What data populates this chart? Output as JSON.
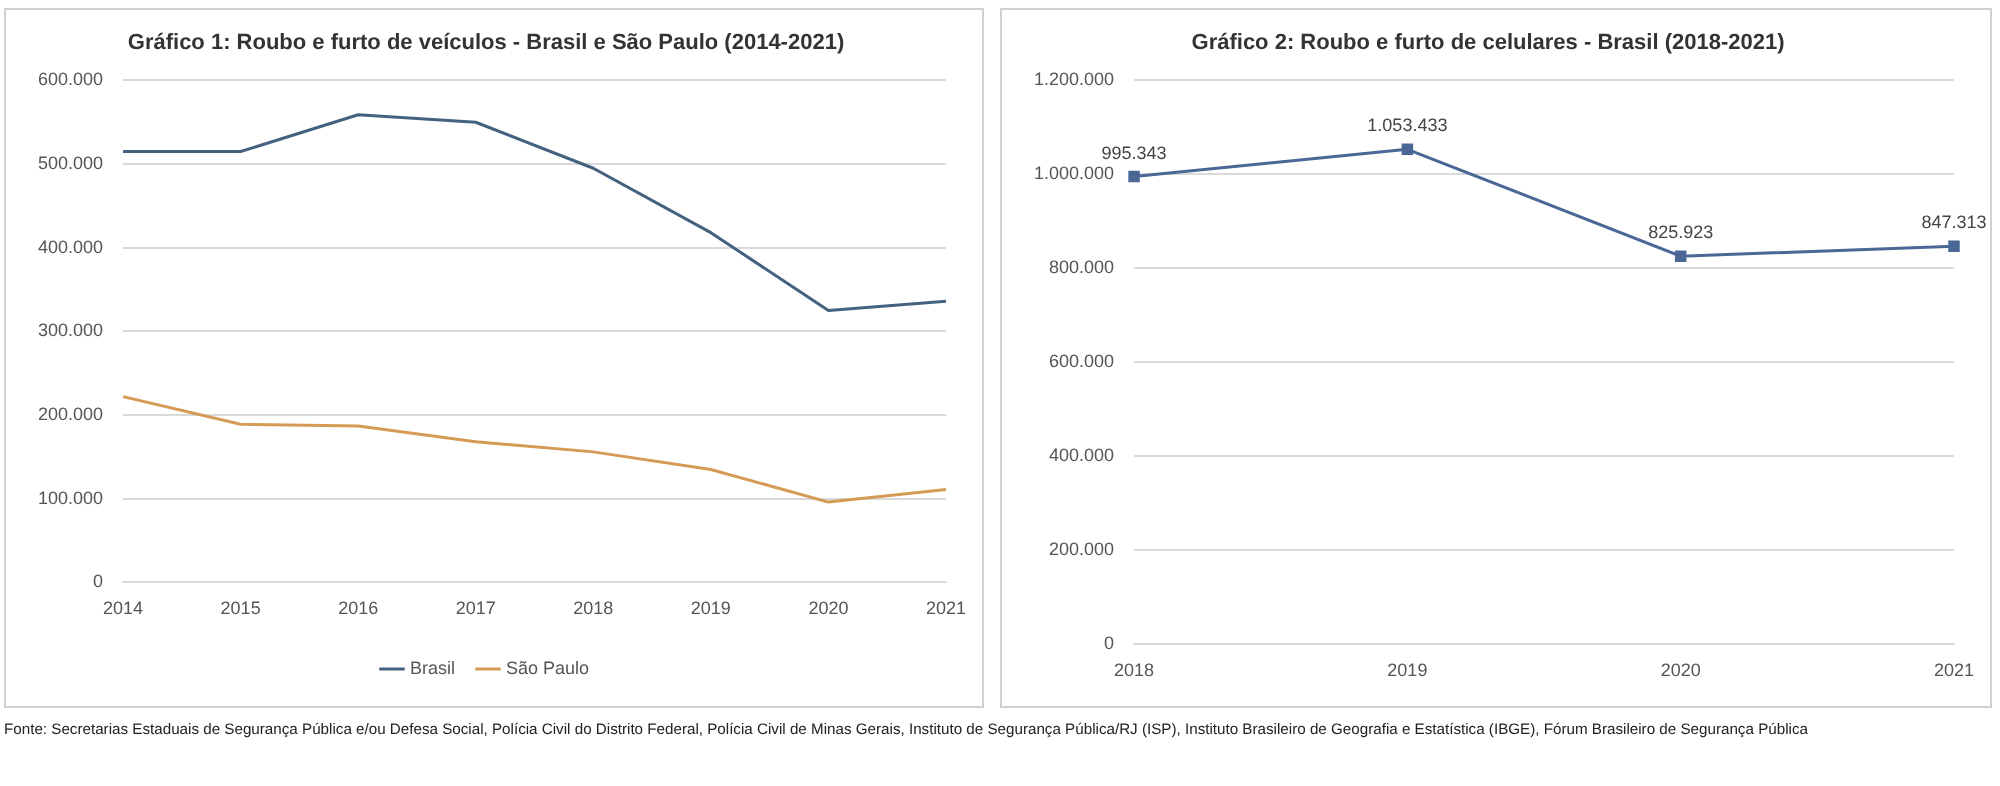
{
  "chart_data": [
    {
      "type": "line",
      "title": "Gráfico 1: Roubo e furto de veículos - Brasil e São Paulo (2014-2021)",
      "categories": [
        "2014",
        "2015",
        "2016",
        "2017",
        "2018",
        "2019",
        "2020",
        "2021"
      ],
      "series": [
        {
          "name": "Brasil",
          "color": "#44617f",
          "values": [
            515000,
            515000,
            559000,
            550000,
            495000,
            418000,
            325000,
            336000
          ]
        },
        {
          "name": "São Paulo",
          "color": "#d59a55",
          "values": [
            222000,
            189000,
            187000,
            168000,
            156000,
            135000,
            96000,
            111000
          ]
        }
      ],
      "ylim": [
        0,
        600000
      ],
      "yticks": [
        0,
        {
          "value": 100000,
          "label": "100.000"
        },
        {
          "value": 200000,
          "label": "200.000"
        },
        {
          "value": 300000,
          "label": "300.000"
        },
        {
          "value": 400000,
          "label": "400.000"
        },
        {
          "value": 500000,
          "label": "500.000"
        },
        {
          "value": 600000,
          "label": "600.000"
        }
      ],
      "grid": "y",
      "legend": "bottom",
      "marker": "none",
      "annotations": [
        "Fonte: Secretarias Estaduais de Segurança Pública e/ou Defesa Social, Polícia Civil do Distrito Federal, Polícia Civil de Minas Gerais, Instituto de Segurança Pública/RJ (ISP), Instituto Brasileiro de Geografia e Estatística (IBGE), Fórum Brasileiro de Segurança Pública"
      ]
    },
    {
      "type": "line",
      "title": "Gráfico 2: Roubo e furto de celulares - Brasil (2018-2021)",
      "categories": [
        "2018",
        "2019",
        "2020",
        "2021"
      ],
      "series": [
        {
          "color": "#4a6796",
          "values": [
            995343,
            1053433,
            825923,
            847313
          ],
          "value_labels": [
            "995.343",
            "1.053.433",
            "825.923",
            "847.313"
          ]
        }
      ],
      "ylim": [
        0,
        1200000
      ],
      "yticks": [
        0,
        {
          "value": 200000,
          "label": "200.000"
        },
        {
          "value": 400000,
          "label": "400.000"
        },
        {
          "value": 600000,
          "label": "600.000"
        },
        {
          "value": 800000,
          "label": "800.000"
        },
        {
          "value": 1000000,
          "label": "1.000.000"
        },
        {
          "value": 1200000,
          "label": "1.200.000"
        }
      ],
      "grid": "y",
      "legend": false,
      "marker": "square"
    }
  ]
}
